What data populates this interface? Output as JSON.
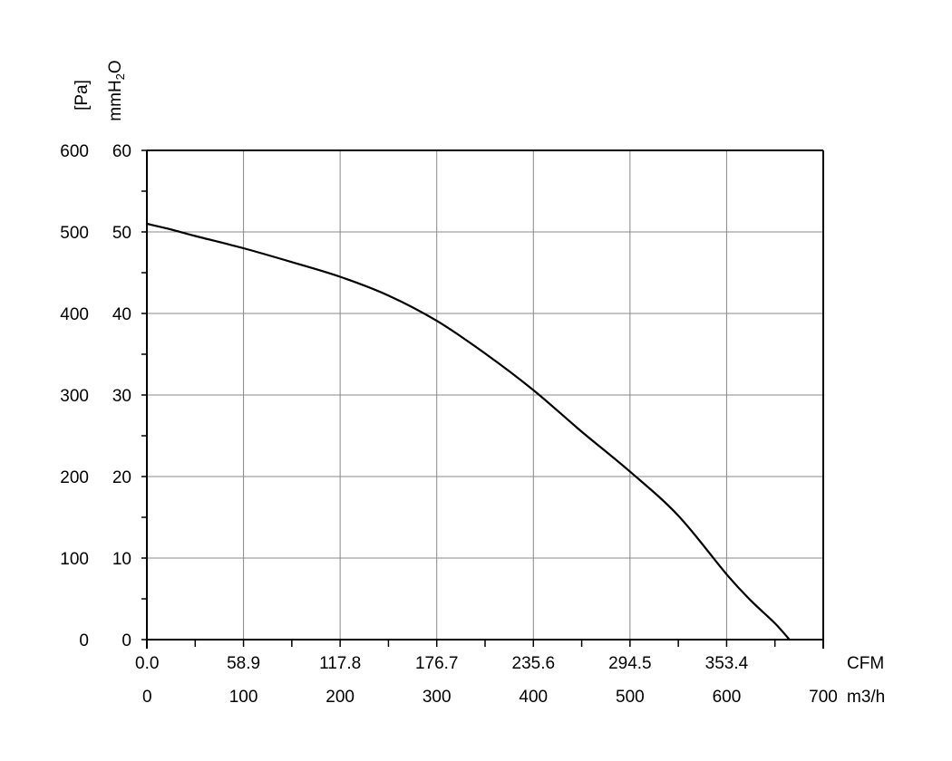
{
  "chart_data": {
    "type": "line",
    "title": "",
    "y_axes": {
      "pa": {
        "unit_label": "[Pa]",
        "range": [
          0,
          600
        ],
        "ticks": [
          "0",
          "100",
          "200",
          "300",
          "400",
          "500",
          "600"
        ]
      },
      "mmh2o": {
        "unit_label": "mmH",
        "unit_sub": "2",
        "unit_suffix": "O",
        "range": [
          0,
          60
        ],
        "ticks": [
          "0",
          "10",
          "20",
          "30",
          "40",
          "50",
          "60"
        ]
      }
    },
    "x_axes": {
      "cfm": {
        "unit_label": "CFM",
        "ticks": [
          "0.0",
          "58.9",
          "117.8",
          "176.7",
          "235.6",
          "294.5",
          "353.4"
        ]
      },
      "m3h": {
        "unit_label": "m3/h",
        "range": [
          0,
          700
        ],
        "ticks": [
          "0",
          "100",
          "200",
          "300",
          "400",
          "500",
          "600",
          "700"
        ]
      }
    },
    "grid": true,
    "series": [
      {
        "x": [
          0,
          25,
          50,
          100,
          150,
          200,
          250,
          300,
          350,
          400,
          450,
          500,
          550,
          600,
          625,
          650,
          665
        ],
        "y": [
          510,
          503,
          495,
          480,
          463,
          445,
          422,
          391,
          351,
          306,
          255,
          206,
          152,
          80,
          48,
          20,
          0
        ]
      }
    ]
  }
}
